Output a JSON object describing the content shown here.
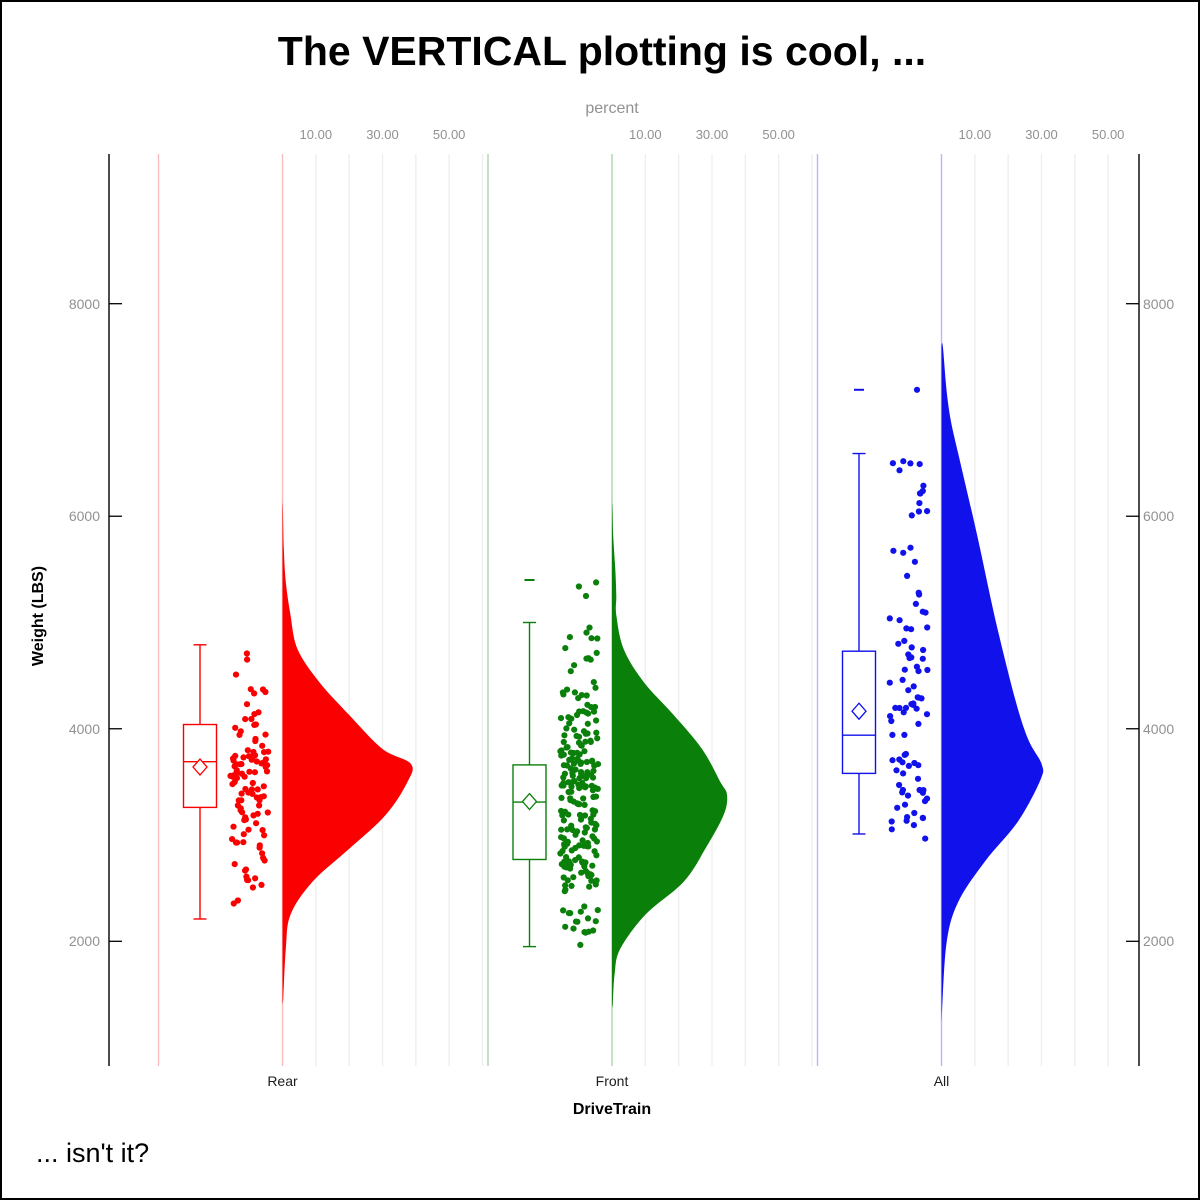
{
  "figure": {
    "title": "The VERTICAL plotting is cool, ...",
    "footnote": "... isn't it?"
  },
  "colors": {
    "gridline": "#EFEFEF",
    "axis_line": "#000000",
    "tick_text": "#919191",
    "category_text": "#1C1C1C",
    "box_fill": "#FFFFFF"
  },
  "chart_data": {
    "type": "raincloud (half-violin + box plot + jittered strip), vertical orientation",
    "title": "The VERTICAL plotting is cool, ...",
    "footnote": "... isn't it?",
    "x_axis": {
      "label": "DriveTrain",
      "categories": [
        "Rear",
        "Front",
        "All"
      ]
    },
    "y_axis": {
      "label": "Weight (LBS)",
      "ticks": [
        2000,
        4000,
        6000,
        8000
      ],
      "range_approx": [
        840,
        9400
      ],
      "both_sides": true
    },
    "percent_axis": {
      "label": "percent",
      "tick_values": [
        10,
        30,
        50
      ],
      "tick_labels": [
        "10.00",
        "30.00",
        "50.00"
      ],
      "gridline_step_percent": 10,
      "max_percent": 60
    },
    "groups": [
      {
        "name": "Rear",
        "color": "#FA0000",
        "light_color": "#F8BCBC",
        "n": 110,
        "box": {
          "whisker_low": 2210,
          "q1": 3260,
          "median": 3690,
          "mean": 3640,
          "q3": 4040,
          "whisker_high": 4790,
          "outliers": []
        },
        "points_range": [
          2170,
          4790
        ],
        "extra_points": [],
        "density_weight_percent": [
          [
            6100,
            0.1
          ],
          [
            5700,
            0.4
          ],
          [
            5380,
            1.0
          ],
          [
            5070,
            2.4
          ],
          [
            4750,
            4.5
          ],
          [
            4440,
            11
          ],
          [
            4130,
            20
          ],
          [
            3810,
            30
          ],
          [
            3670,
            38.5
          ],
          [
            3500,
            37.5
          ],
          [
            3190,
            31
          ],
          [
            2870,
            20
          ],
          [
            2560,
            9
          ],
          [
            2250,
            2.4
          ],
          [
            1930,
            1.0
          ],
          [
            1450,
            0.2
          ]
        ]
      },
      {
        "name": "Front",
        "color": "#0A800A",
        "light_color": "#ACD5AC",
        "n": 226,
        "box": {
          "whisker_low": 1950,
          "q1": 2770,
          "median": 3310,
          "mean": 3315,
          "q3": 3660,
          "whisker_high": 5000,
          "outliers": [
            5400
          ]
        },
        "points_range": [
          1850,
          5480
        ],
        "extra_points": [],
        "density_weight_percent": [
          [
            6100,
            0.1
          ],
          [
            5800,
            0.4
          ],
          [
            5500,
            1.0
          ],
          [
            5250,
            1.3
          ],
          [
            5070,
            1.3
          ],
          [
            4750,
            3.5
          ],
          [
            4440,
            9.5
          ],
          [
            4130,
            18.5
          ],
          [
            3810,
            27
          ],
          [
            3500,
            32.5
          ],
          [
            3380,
            34.5
          ],
          [
            3190,
            33.5
          ],
          [
            2870,
            28
          ],
          [
            2560,
            21.5
          ],
          [
            2250,
            10
          ],
          [
            1930,
            2.5
          ],
          [
            1700,
            0.8
          ],
          [
            1400,
            0.2
          ]
        ]
      },
      {
        "name": "All",
        "color": "#1111EC",
        "light_color": "#B7BAF2",
        "n": 92,
        "box": {
          "whisker_low": 3010,
          "q1": 3580,
          "median": 3940,
          "mean": 4165,
          "q3": 4730,
          "whisker_high": 6590,
          "outliers": [
            7190
          ]
        },
        "points_range": [
          2890,
          6600
        ],
        "extra_points": [
          7190
        ],
        "density_weight_percent": [
          [
            7600,
            0.4
          ],
          [
            7190,
            1.5
          ],
          [
            6900,
            2.8
          ],
          [
            6590,
            5
          ],
          [
            5820,
            10.7
          ],
          [
            5050,
            16
          ],
          [
            4290,
            22
          ],
          [
            3900,
            26
          ],
          [
            3670,
            30
          ],
          [
            3520,
            29.7
          ],
          [
            3130,
            23
          ],
          [
            2750,
            13
          ],
          [
            2370,
            5
          ],
          [
            1980,
            1.5
          ],
          [
            1300,
            0.1
          ]
        ]
      }
    ]
  }
}
